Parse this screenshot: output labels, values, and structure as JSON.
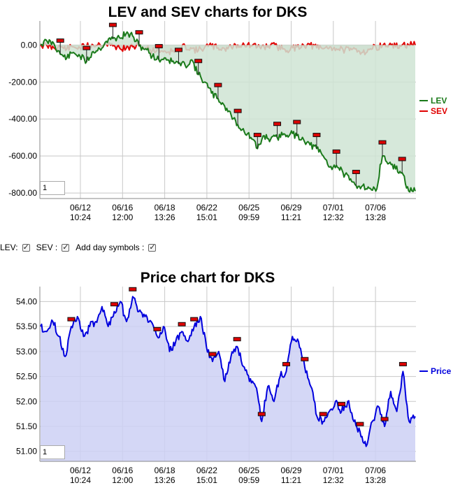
{
  "top_chart": {
    "chart_data": {
      "type": "line",
      "title": "LEV and SEV charts for DKS",
      "y_ticks": [
        "0.00",
        "-200.00",
        "-400.00",
        "-600.00",
        "-800.00"
      ],
      "x_ticks": [
        {
          "date": "06/12",
          "time": "10:24"
        },
        {
          "date": "06/16",
          "time": "12:00"
        },
        {
          "date": "06/18",
          "time": "13:26"
        },
        {
          "date": "06/22",
          "time": "15:01"
        },
        {
          "date": "06/25",
          "time": "09:59"
        },
        {
          "date": "06/29",
          "time": "11:21"
        },
        {
          "date": "07/01",
          "time": "12:32"
        },
        {
          "date": "07/06",
          "time": "13:28"
        }
      ],
      "ylim": [
        -830,
        130
      ],
      "grid": true,
      "legend_position": "right",
      "series": [
        {
          "name": "LEV",
          "color": "#1a7a1a",
          "fill": "#cfe4d3",
          "values": [
            5,
            20,
            10,
            -50,
            -70,
            -40,
            -60,
            -90,
            -35,
            -20,
            20,
            35,
            40,
            60,
            50,
            -5,
            -20,
            -60,
            -80,
            -70,
            -90,
            -100,
            -110,
            -80,
            -160,
            -200,
            -260,
            -290,
            -330,
            -380,
            -430,
            -470,
            -500,
            -560,
            -490,
            -510,
            -500,
            -480,
            -480,
            -490,
            -510,
            -540,
            -560,
            -600,
            -660,
            -650,
            -690,
            -730,
            -760,
            -760,
            -775,
            -790,
            -600,
            -640,
            -670,
            -690,
            -790,
            -790
          ]
        },
        {
          "name": "SEV",
          "color": "#e00000",
          "fill": "#d0c8c0",
          "values": [
            0,
            -5,
            -15,
            -10,
            -20,
            -10,
            -15,
            -5,
            0,
            5,
            5,
            -5,
            -15,
            -20,
            -10,
            -5,
            -15,
            -30,
            -25,
            -35,
            -35,
            -30,
            -5,
            -20,
            -30,
            -10,
            -5,
            -15,
            -20,
            -10,
            0,
            0,
            -5,
            -10,
            -10,
            0,
            -10,
            -20,
            -25,
            -10,
            0,
            0,
            -15,
            -20,
            -10,
            -20,
            -25,
            -30,
            -20,
            -40,
            -25,
            -10,
            -5,
            0,
            -10,
            0,
            0,
            0
          ]
        }
      ]
    },
    "zoom_value": "1"
  },
  "checkboxes": [
    {
      "label": "LEV:",
      "checked": true
    },
    {
      "label": "SEV :",
      "checked": true
    },
    {
      "label": "Add day symbols :",
      "checked": true
    }
  ],
  "price_chart": {
    "chart_data": {
      "type": "area",
      "title": "Price chart for DKS",
      "y_ticks": [
        "54.00",
        "53.50",
        "53.00",
        "52.50",
        "52.00",
        "51.50",
        "51.00"
      ],
      "x_ticks": [
        {
          "date": "06/12",
          "time": "10:24"
        },
        {
          "date": "06/16",
          "time": "12:00"
        },
        {
          "date": "06/18",
          "time": "13:26"
        },
        {
          "date": "06/22",
          "time": "15:01"
        },
        {
          "date": "06/25",
          "time": "09:59"
        },
        {
          "date": "06/29",
          "time": "11:21"
        },
        {
          "date": "07/01",
          "time": "12:32"
        },
        {
          "date": "07/06",
          "time": "13:28"
        }
      ],
      "ylim": [
        50.8,
        54.3
      ],
      "grid": true,
      "legend_position": "right",
      "series": [
        {
          "name": "Price",
          "color": "#0000dd",
          "fill": "#cdd0f5",
          "values": [
            53.5,
            53.4,
            53.6,
            53.3,
            52.9,
            53.5,
            53.7,
            53.3,
            53.5,
            53.6,
            53.9,
            53.5,
            53.8,
            54.0,
            53.6,
            54.1,
            53.8,
            53.7,
            53.6,
            53.3,
            53.5,
            53.0,
            53.2,
            53.4,
            53.2,
            53.5,
            53.7,
            53.1,
            52.8,
            53.0,
            52.4,
            52.9,
            53.1,
            52.7,
            52.4,
            52.3,
            51.6,
            52.3,
            52.0,
            52.5,
            52.6,
            53.3,
            53.2,
            52.7,
            52.3,
            51.7,
            51.6,
            51.8,
            52.0,
            51.8,
            52.0,
            51.6,
            51.4,
            51.1,
            51.6,
            51.9,
            51.5,
            52.2,
            51.8,
            52.6,
            51.6,
            51.7
          ]
        }
      ]
    },
    "zoom_value": "1"
  }
}
